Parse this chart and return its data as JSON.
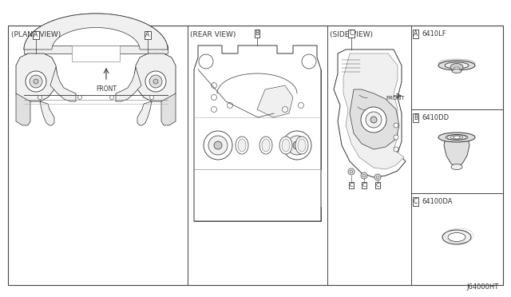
{
  "bg_color": "#ffffff",
  "outer_bg": "#f5f5f5",
  "border_color": "#444444",
  "line_color": "#333333",
  "light_line": "#777777",
  "very_light": "#aaaaaa",
  "fill_light": "#f0f0f0",
  "fill_med": "#e0e0e0",
  "fill_dark": "#cccccc",
  "title_font_size": 6.5,
  "label_font_size": 5.5,
  "footer_text": "J64000HT",
  "panel1_label": "(PLANE VIEW)",
  "panel2_label": "(REAR VIEW)",
  "panel3_label": "(SIDE VIEW)",
  "part_codes": [
    "6410LF",
    "6410DD",
    "64100DA"
  ],
  "part_letters": [
    "A",
    "B",
    "C"
  ]
}
